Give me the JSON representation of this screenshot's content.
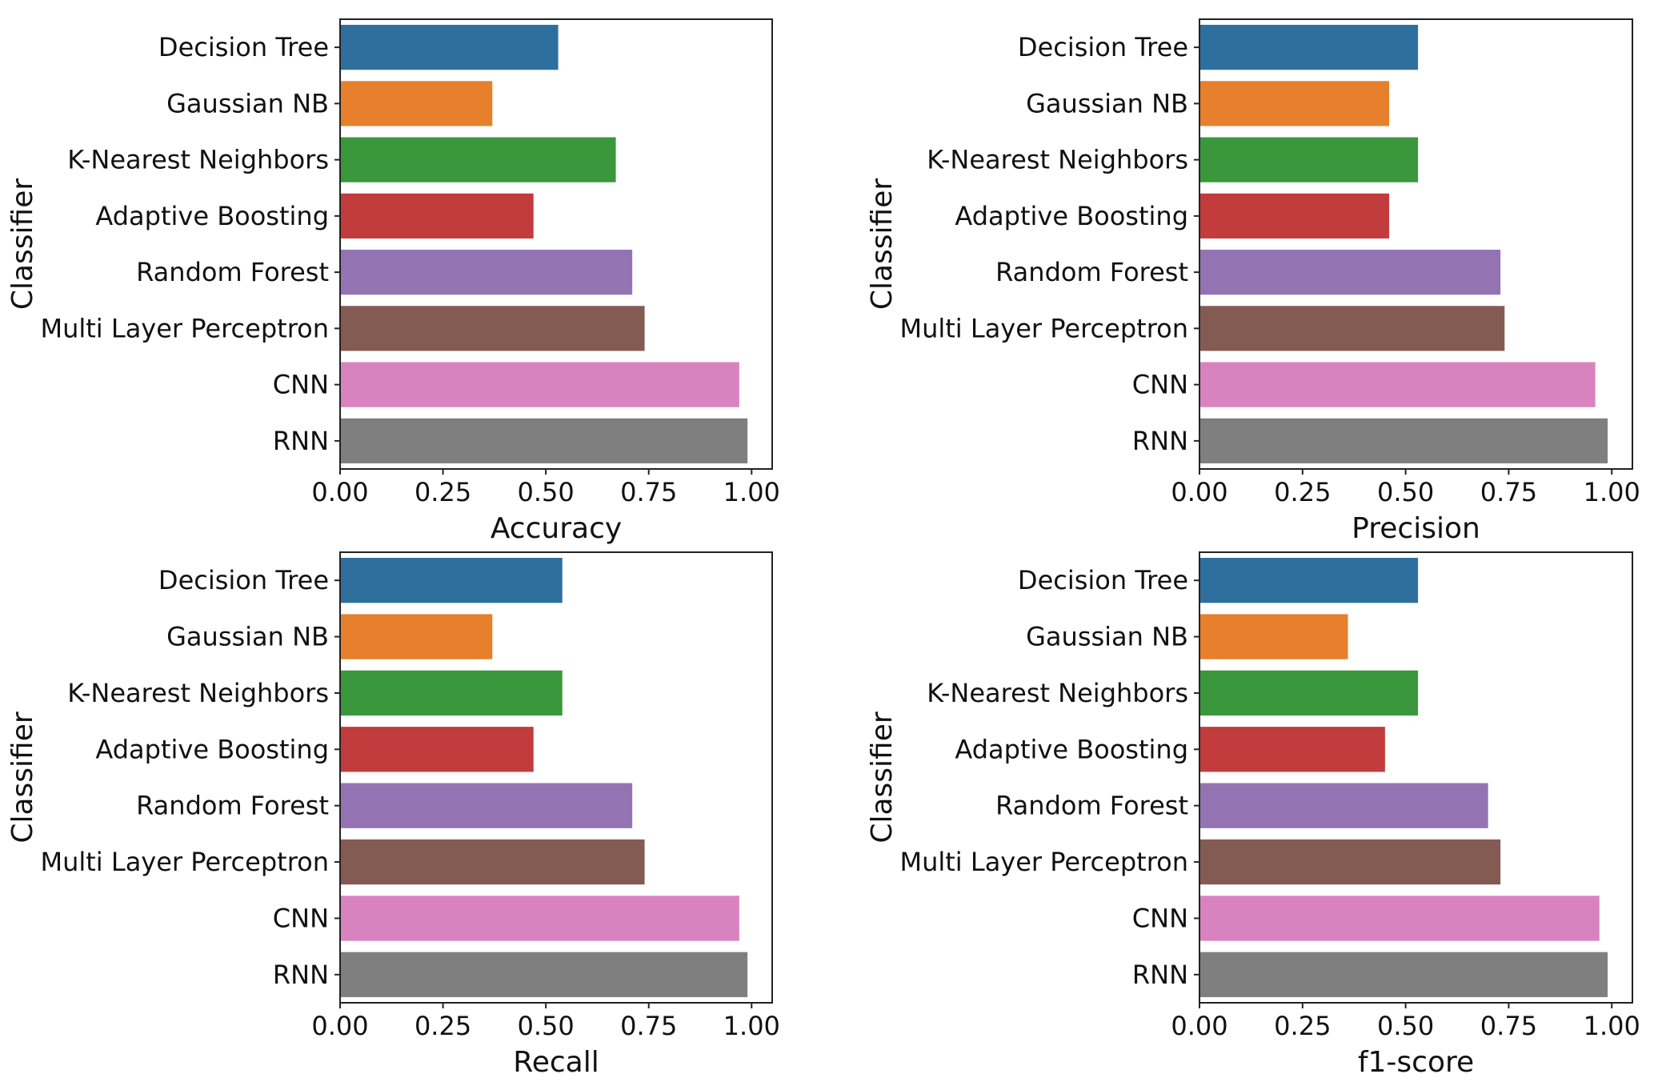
{
  "chart_data": [
    {
      "type": "bar",
      "orientation": "horizontal",
      "xlabel": "Accuracy",
      "ylabel": "Classifier",
      "xlim": [
        0,
        1.05
      ],
      "xticks": [
        "0.00",
        "0.25",
        "0.50",
        "0.75",
        "1.00"
      ],
      "categories": [
        "Decision Tree",
        "Gaussian NB",
        "K-Nearest Neighbors",
        "Adaptive Boosting",
        "Random Forest",
        "Multi Layer Perceptron",
        "CNN",
        "RNN"
      ],
      "values": [
        0.53,
        0.37,
        0.67,
        0.47,
        0.71,
        0.74,
        0.97,
        0.99
      ]
    },
    {
      "type": "bar",
      "orientation": "horizontal",
      "xlabel": "Precision",
      "ylabel": "Classifier",
      "xlim": [
        0,
        1.05
      ],
      "xticks": [
        "0.00",
        "0.25",
        "0.50",
        "0.75",
        "1.00"
      ],
      "categories": [
        "Decision Tree",
        "Gaussian NB",
        "K-Nearest Neighbors",
        "Adaptive Boosting",
        "Random Forest",
        "Multi Layer Perceptron",
        "CNN",
        "RNN"
      ],
      "values": [
        0.53,
        0.46,
        0.53,
        0.46,
        0.73,
        0.74,
        0.96,
        0.99
      ]
    },
    {
      "type": "bar",
      "orientation": "horizontal",
      "xlabel": "Recall",
      "ylabel": "Classifier",
      "xlim": [
        0,
        1.05
      ],
      "xticks": [
        "0.00",
        "0.25",
        "0.50",
        "0.75",
        "1.00"
      ],
      "categories": [
        "Decision Tree",
        "Gaussian NB",
        "K-Nearest Neighbors",
        "Adaptive Boosting",
        "Random Forest",
        "Multi Layer Perceptron",
        "CNN",
        "RNN"
      ],
      "values": [
        0.54,
        0.37,
        0.54,
        0.47,
        0.71,
        0.74,
        0.97,
        0.99
      ]
    },
    {
      "type": "bar",
      "orientation": "horizontal",
      "xlabel": "f1-score",
      "ylabel": "Classifier",
      "xlim": [
        0,
        1.05
      ],
      "xticks": [
        "0.00",
        "0.25",
        "0.50",
        "0.75",
        "1.00"
      ],
      "categories": [
        "Decision Tree",
        "Gaussian NB",
        "K-Nearest Neighbors",
        "Adaptive Boosting",
        "Random Forest",
        "Multi Layer Perceptron",
        "CNN",
        "RNN"
      ],
      "values": [
        0.53,
        0.36,
        0.53,
        0.45,
        0.7,
        0.73,
        0.97,
        0.99
      ]
    }
  ],
  "colors": [
    "#2e6f9e",
    "#e6802c",
    "#3b973b",
    "#c23b3d",
    "#9473b3",
    "#845b53",
    "#d883bf",
    "#7f7f7f"
  ]
}
